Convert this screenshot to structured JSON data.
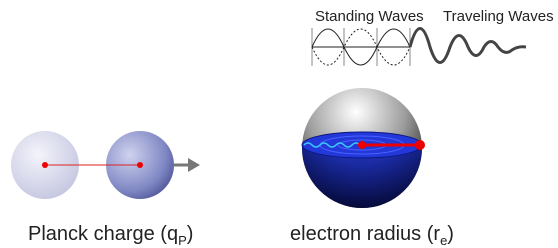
{
  "waves": {
    "standing": "Standing Waves",
    "traveling": "Traveling Waves"
  },
  "planck": {
    "text": "Planck charge (q",
    "sub": "P",
    "close": ")"
  },
  "electron": {
    "text": "electron radius (r",
    "sub": "e",
    "close": ")"
  }
}
